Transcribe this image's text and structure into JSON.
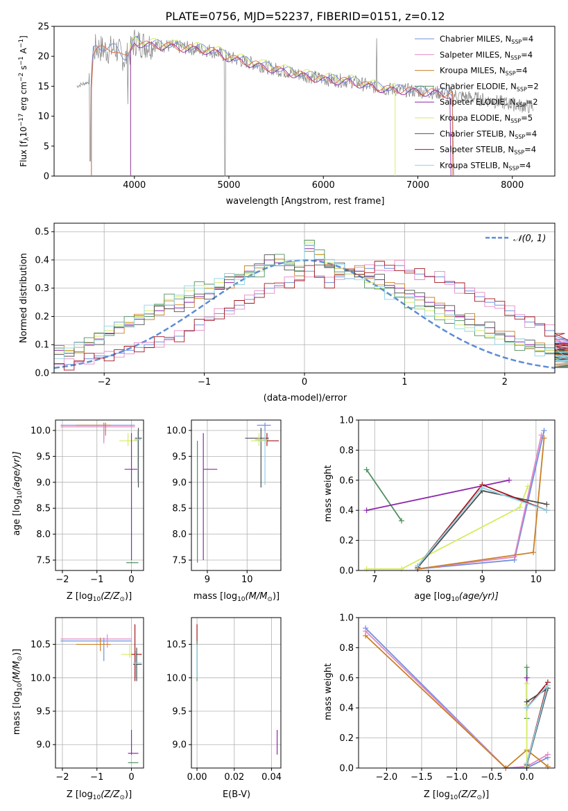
{
  "colors": {
    "chabrier_miles": "#6f8fe0",
    "salpeter_miles": "#e487c4",
    "kroupa_miles": "#c87f25",
    "chabrier_elodie": "#4f8f5f",
    "salpeter_elodie": "#8e26ab",
    "kroupa_elodie": "#d5ec5e",
    "chabrier_stelib": "#4d4d4d",
    "salpeter_stelib": "#a3141c",
    "kroupa_stelib": "#8ed3e6",
    "normal": "#5b8cd6",
    "data": "#808080",
    "model": "#e06a3c",
    "grid": "#b0b0b0"
  },
  "chart_data": [
    {
      "type": "line",
      "title": "PLATE=0756, MJD=52237, FIBERID=0151, z=0.12",
      "xlabel": "wavelength [Angstrom, rest frame]",
      "ylabel_parts": [
        "Flux [f",
        "λ",
        "10",
        "−17",
        " erg cm",
        "−2",
        " s",
        "−1",
        " A",
        "−1",
        "]"
      ],
      "xlim": [
        3150,
        8450
      ],
      "ylim": [
        0,
        25
      ],
      "xticks": [
        "4000",
        "5000",
        "6000",
        "7000",
        "8000"
      ],
      "yticks": [
        "0",
        "5",
        "10",
        "15",
        "20",
        "25"
      ],
      "grid": false,
      "legend_position": "top-right",
      "legend": [
        {
          "imf": "Chabrier",
          "lib": "MILES",
          "n": "4"
        },
        {
          "imf": "Salpeter",
          "lib": "MILES",
          "n": "4"
        },
        {
          "imf": "Kroupa",
          "lib": "MILES",
          "n": "4"
        },
        {
          "imf": "Chabrier",
          "lib": "ELODIE",
          "n": "2"
        },
        {
          "imf": "Salpeter",
          "lib": "ELODIE",
          "n": "2"
        },
        {
          "imf": "Kroupa",
          "lib": "ELODIE",
          "n": "5"
        },
        {
          "imf": "Chabrier",
          "lib": "STELIB",
          "n": "4"
        },
        {
          "imf": "Salpeter",
          "lib": "STELIB",
          "n": "4"
        },
        {
          "imf": "Kroupa",
          "lib": "STELIB",
          "n": "4"
        }
      ],
      "legend_nssp_label": "N",
      "legend_nssp_sub": "SSP",
      "model_continuum": {
        "wavelength": [
          3550,
          3600,
          3700,
          3800,
          3900,
          3950,
          4000,
          4100,
          4300,
          4500,
          4800,
          4900,
          5000,
          5200,
          5500,
          5800,
          6000,
          6300,
          6500,
          6700,
          7000,
          7300,
          7400,
          7800,
          8200
        ],
        "flux": [
          20.5,
          21.5,
          21.0,
          21.3,
          19.5,
          20.5,
          22.5,
          22.0,
          21.8,
          21.5,
          21.0,
          20.5,
          19.8,
          19.0,
          17.8,
          16.8,
          16.2,
          15.8,
          15.0,
          14.5,
          14.2,
          13.8,
          13.5,
          12.5,
          11.5
        ]
      }
    },
    {
      "type": "line",
      "xlabel": "(data-model)/error",
      "ylabel": "Normed distribution",
      "xlim": [
        -2.5,
        2.5
      ],
      "ylim": [
        0,
        0.53
      ],
      "xticks": [
        "−2",
        "−1",
        "0",
        "1",
        "2"
      ],
      "yticks": [
        "0.0",
        "0.1",
        "0.2",
        "0.3",
        "0.4",
        "0.5"
      ],
      "grid": true,
      "legend_position": "top-right",
      "legend": [
        "𝒩(0, 1)"
      ],
      "series": [
        {
          "name": "Chabrier MILES, NSSP=4",
          "x_start": -2.5,
          "bin_width": 0.1,
          "values": [
            0.03,
            0.03,
            0.04,
            0.05,
            0.06,
            0.06,
            0.07,
            0.08,
            0.09,
            0.1,
            0.11,
            0.12,
            0.13,
            0.15,
            0.17,
            0.19,
            0.21,
            0.22,
            0.24,
            0.26,
            0.28,
            0.3,
            0.31,
            0.32,
            0.33,
            0.36,
            0.34,
            0.32,
            0.34,
            0.35,
            0.36,
            0.37,
            0.38,
            0.37,
            0.38,
            0.36,
            0.35,
            0.34,
            0.34,
            0.32,
            0.3,
            0.29,
            0.27,
            0.25,
            0.24,
            0.22,
            0.2,
            0.18,
            0.17,
            0.15,
            0.13,
            0.12,
            0.11,
            0.1,
            0.09,
            0.08,
            0.07,
            0.06,
            0.05,
            0.05
          ]
        },
        {
          "name": "Salpeter ELODIE, NSSP=2",
          "x_start": -2.5,
          "bin_width": 0.1,
          "values": [
            0.08,
            0.07,
            0.09,
            0.1,
            0.12,
            0.14,
            0.16,
            0.17,
            0.19,
            0.2,
            0.22,
            0.24,
            0.23,
            0.25,
            0.27,
            0.28,
            0.3,
            0.32,
            0.34,
            0.36,
            0.38,
            0.4,
            0.39,
            0.38,
            0.36,
            0.44,
            0.4,
            0.38,
            0.37,
            0.36,
            0.36,
            0.34,
            0.33,
            0.31,
            0.3,
            0.28,
            0.27,
            0.25,
            0.24,
            0.22,
            0.2,
            0.19,
            0.17,
            0.16,
            0.14,
            0.13,
            0.11,
            0.1,
            0.09,
            0.08,
            0.08,
            0.07,
            0.06,
            0.06,
            0.05,
            0.05,
            0.04,
            0.04,
            0.04,
            0.03
          ]
        },
        {
          "name": "Kroupa ELODIE, NSSP=5",
          "x_start": -2.5,
          "bin_width": 0.1,
          "values": [
            0.07,
            0.08,
            0.09,
            0.11,
            0.13,
            0.15,
            0.17,
            0.18,
            0.2,
            0.22,
            0.24,
            0.26,
            0.27,
            0.29,
            0.31,
            0.3,
            0.32,
            0.34,
            0.33,
            0.35,
            0.36,
            0.38,
            0.4,
            0.39,
            0.38,
            0.46,
            0.42,
            0.39,
            0.37,
            0.35,
            0.34,
            0.32,
            0.3,
            0.28,
            0.27,
            0.25,
            0.23,
            0.22,
            0.2,
            0.19,
            0.17,
            0.16,
            0.15,
            0.13,
            0.12,
            0.11,
            0.1,
            0.09,
            0.08,
            0.08,
            0.07,
            0.07,
            0.06,
            0.06,
            0.05,
            0.05,
            0.05,
            0.04,
            0.04,
            0.04
          ]
        },
        {
          "name": "Normal",
          "type": "normal-pdf",
          "mu": 0,
          "sigma": 1
        }
      ]
    },
    {
      "type": "scatter",
      "xlabel_parts": [
        "Z [log",
        "10",
        "(Z/Z",
        "⊙",
        ")]"
      ],
      "ylabel_parts": [
        "age  [log",
        "10",
        "(age/yr)]"
      ],
      "xlim": [
        -2.2,
        0.35
      ],
      "ylim": [
        7.3,
        10.2
      ],
      "xticks": [
        "−2",
        "−1",
        "0"
      ],
      "yticks": [
        "7.5",
        "8.0",
        "8.5",
        "9.0",
        "9.5",
        "10.0"
      ],
      "grid": true
    },
    {
      "type": "scatter",
      "xlabel_parts": [
        "mass [log",
        "10",
        "(M/M",
        "⊙",
        ")]"
      ],
      "xlim": [
        8.6,
        10.85
      ],
      "ylim": [
        7.3,
        10.2
      ],
      "xticks": [
        "9",
        "10"
      ],
      "yticks": [
        "7.5",
        "8.0",
        "8.5",
        "9.0",
        "9.5",
        "10.0"
      ],
      "grid": true
    },
    {
      "type": "line",
      "xlabel_parts": [
        "age  [log",
        "10",
        "(age/yr)]"
      ],
      "ylabel": "mass weight",
      "xlim": [
        6.7,
        10.35
      ],
      "ylim": [
        0,
        1.0
      ],
      "xticks": [
        "7",
        "8",
        "9",
        "10"
      ],
      "yticks": [
        "0.0",
        "0.2",
        "0.4",
        "0.6",
        "0.8",
        "1.0"
      ],
      "grid": true
    },
    {
      "type": "scatter",
      "xlabel_parts": [
        "Z [log",
        "10",
        "(Z/Z",
        "⊙",
        ")]"
      ],
      "ylabel_parts": [
        "mass [log",
        "10",
        "(M/M",
        "⊙",
        ")]"
      ],
      "xlim": [
        -2.2,
        0.35
      ],
      "ylim": [
        8.65,
        10.9
      ],
      "xticks": [
        "−2",
        "−1",
        "0"
      ],
      "yticks": [
        "9.0",
        "9.5",
        "10.0",
        "10.5"
      ],
      "grid": true
    },
    {
      "type": "scatter",
      "xlabel": "E(B-V)",
      "xlim": [
        -0.003,
        0.045
      ],
      "ylim": [
        8.65,
        10.9
      ],
      "xticks": [
        "0.00",
        "0.02",
        "0.04"
      ],
      "yticks": [
        "9.0",
        "9.5",
        "10.0",
        "10.5"
      ],
      "grid": true
    },
    {
      "type": "line",
      "xlabel_parts": [
        "Z [log",
        "10",
        "(Z/Z",
        "⊙",
        ")]"
      ],
      "ylabel": "mass weight",
      "xlim": [
        -2.4,
        0.4
      ],
      "ylim": [
        0,
        1.0
      ],
      "xticks": [
        "−2.0",
        "−1.5",
        "−1.0",
        "−0.5",
        "0.0"
      ],
      "yticks": [
        "0.0",
        "0.2",
        "0.4",
        "0.6",
        "0.8",
        "1.0"
      ],
      "grid": true
    }
  ]
}
